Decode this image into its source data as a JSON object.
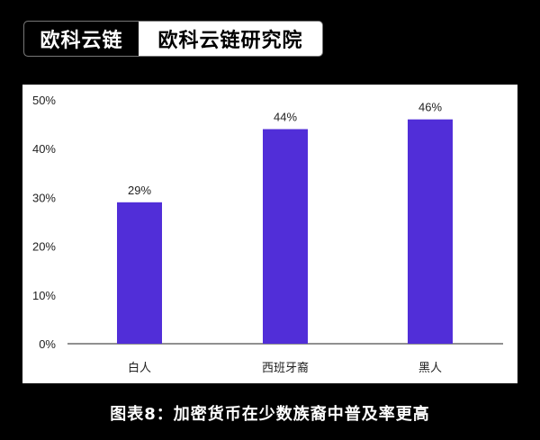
{
  "header": {
    "brand": "欧科云链",
    "institute": "欧科云链研究院"
  },
  "caption": "图表8：加密货币在少数族裔中普及率更高",
  "chart_data": {
    "type": "bar",
    "categories": [
      "白人",
      "西班牙裔",
      "黑人"
    ],
    "values": [
      29,
      44,
      46
    ],
    "data_labels": [
      "29%",
      "44%",
      "46%"
    ],
    "yticks": [
      "0%",
      "10%",
      "20%",
      "30%",
      "40%",
      "50%"
    ],
    "ylim": [
      0,
      50
    ],
    "grid": false,
    "bar_color": "#512ed8",
    "title": "",
    "xlabel": "",
    "ylabel": ""
  }
}
